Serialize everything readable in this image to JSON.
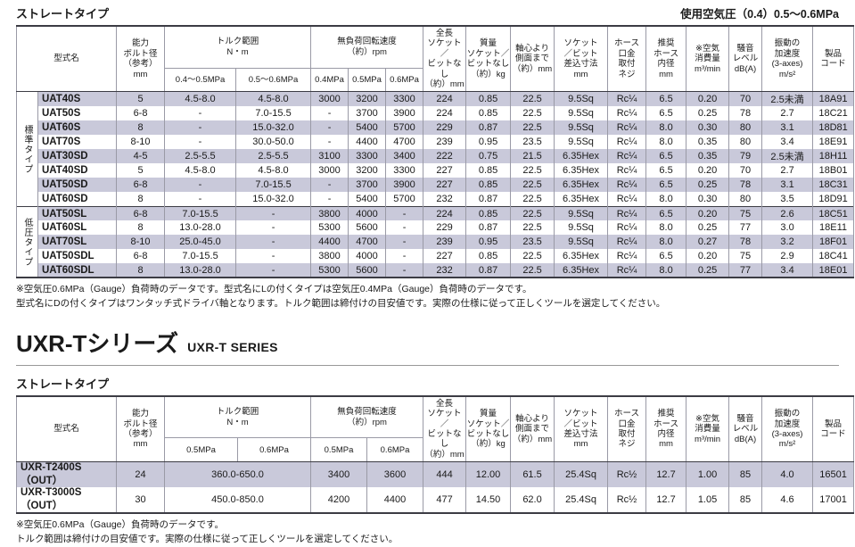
{
  "colors": {
    "stripe": "#c9c9da",
    "border_dark": "#3c3c44",
    "border_light": "#9a9aa6",
    "text": "#1a1a1a"
  },
  "page": {
    "table1_title": "ストレートタイプ",
    "air_pressure_note": "使用空気圧（0.4）0.5～0.6MPa",
    "series_title_jp": "UXR-Tシリーズ",
    "series_title_en": "UXR-T SERIES",
    "table2_title": "ストレートタイプ"
  },
  "table1": {
    "headers": {
      "model": "型式名",
      "bolt": "能力\nボルト径\n（参考）\nmm",
      "torque": "トルク範囲\nN・m",
      "torque_sub": [
        "0.4～0.5MPa",
        "0.5～0.6MPa"
      ],
      "rpm": "無負荷回転速度\n（約）rpm",
      "rpm_sub": [
        "0.4MPa",
        "0.5MPa",
        "0.6MPa"
      ],
      "length": "全長\nソケット／\nビットなし\n（約）mm",
      "mass": "質量\nソケット／\nビットなし\n（約）kg",
      "axis": "軸心より\n側面まで\n（約）mm",
      "socket": "ソケット\n／ビット\n差込寸法\nmm",
      "hose_screw": "ホース\n口金\n取付\nネジ",
      "hose_dia": "推奨\nホース\n内径\nmm",
      "air": "※空気\n消費量\nm³/min",
      "noise": "騒音\nレベル\ndB(A)",
      "vibration": "振動の\n加速度\n(3-axes)\nm/s²",
      "code": "製品\nコード"
    },
    "groups": [
      {
        "label": "標準タイプ",
        "rows": [
          {
            "model": "UAT40S",
            "cells": [
              "5",
              "4.5-8.0",
              "4.5-8.0",
              "3000",
              "3200",
              "3300",
              "224",
              "0.85",
              "22.5",
              "9.5Sq",
              "Rc¼",
              "6.5",
              "0.20",
              "70",
              "2.5未満",
              "18A91"
            ]
          },
          {
            "model": "UAT50S",
            "cells": [
              "6-8",
              "-",
              "7.0-15.5",
              "-",
              "3700",
              "3900",
              "224",
              "0.85",
              "22.5",
              "9.5Sq",
              "Rc¼",
              "6.5",
              "0.25",
              "78",
              "2.7",
              "18C21"
            ]
          },
          {
            "model": "UAT60S",
            "cells": [
              "8",
              "-",
              "15.0-32.0",
              "-",
              "5400",
              "5700",
              "229",
              "0.87",
              "22.5",
              "9.5Sq",
              "Rc¼",
              "8.0",
              "0.30",
              "80",
              "3.1",
              "18D81"
            ]
          },
          {
            "model": "UAT70S",
            "cells": [
              "8-10",
              "-",
              "30.0-50.0",
              "-",
              "4400",
              "4700",
              "239",
              "0.95",
              "23.5",
              "9.5Sq",
              "Rc¼",
              "8.0",
              "0.35",
              "80",
              "3.4",
              "18E91"
            ]
          },
          {
            "model": "UAT30SD",
            "cells": [
              "4-5",
              "2.5-5.5",
              "2.5-5.5",
              "3100",
              "3300",
              "3400",
              "222",
              "0.75",
              "21.5",
              "6.35Hex",
              "Rc¼",
              "6.5",
              "0.35",
              "79",
              "2.5未満",
              "18H11"
            ]
          },
          {
            "model": "UAT40SD",
            "cells": [
              "5",
              "4.5-8.0",
              "4.5-8.0",
              "3000",
              "3200",
              "3300",
              "227",
              "0.85",
              "22.5",
              "6.35Hex",
              "Rc¼",
              "6.5",
              "0.20",
              "70",
              "2.7",
              "18B01"
            ]
          },
          {
            "model": "UAT50SD",
            "cells": [
              "6-8",
              "-",
              "7.0-15.5",
              "-",
              "3700",
              "3900",
              "227",
              "0.85",
              "22.5",
              "6.35Hex",
              "Rc¼",
              "6.5",
              "0.25",
              "78",
              "3.1",
              "18C31"
            ]
          },
          {
            "model": "UAT60SD",
            "cells": [
              "8",
              "-",
              "15.0-32.0",
              "-",
              "5400",
              "5700",
              "232",
              "0.87",
              "22.5",
              "6.35Hex",
              "Rc¼",
              "8.0",
              "0.30",
              "80",
              "3.5",
              "18D91"
            ]
          }
        ]
      },
      {
        "label": "低圧タイプ",
        "rows": [
          {
            "model": "UAT50SL",
            "cells": [
              "6-8",
              "7.0-15.5",
              "-",
              "3800",
              "4000",
              "-",
              "224",
              "0.85",
              "22.5",
              "9.5Sq",
              "Rc¼",
              "6.5",
              "0.20",
              "75",
              "2.6",
              "18C51"
            ]
          },
          {
            "model": "UAT60SL",
            "cells": [
              "8",
              "13.0-28.0",
              "-",
              "5300",
              "5600",
              "-",
              "229",
              "0.87",
              "22.5",
              "9.5Sq",
              "Rc¼",
              "8.0",
              "0.25",
              "77",
              "3.0",
              "18E11"
            ]
          },
          {
            "model": "UAT70SL",
            "cells": [
              "8-10",
              "25.0-45.0",
              "-",
              "4400",
              "4700",
              "-",
              "239",
              "0.95",
              "23.5",
              "9.5Sq",
              "Rc¼",
              "8.0",
              "0.27",
              "78",
              "3.2",
              "18F01"
            ]
          },
          {
            "model": "UAT50SDL",
            "cells": [
              "6-8",
              "7.0-15.5",
              "-",
              "3800",
              "4000",
              "-",
              "227",
              "0.85",
              "22.5",
              "6.35Hex",
              "Rc¼",
              "6.5",
              "0.20",
              "75",
              "2.9",
              "18C41"
            ]
          },
          {
            "model": "UAT60SDL",
            "cells": [
              "8",
              "13.0-28.0",
              "-",
              "5300",
              "5600",
              "-",
              "232",
              "0.87",
              "22.5",
              "6.35Hex",
              "Rc¼",
              "8.0",
              "0.25",
              "77",
              "3.4",
              "18E01"
            ]
          }
        ]
      }
    ],
    "footnotes": [
      "※空気圧0.6MPa（Gauge）負荷時のデータです。型式名にLの付くタイプは空気圧0.4MPa（Gauge）負荷時のデータです。",
      "型式名にDの付くタイプはワンタッチ式ドライバ軸となります。トルク範囲は締付けの目安値です。実際の仕様に従って正しくツールを選定してください。"
    ]
  },
  "table2": {
    "headers": {
      "model": "型式名",
      "bolt": "能力\nボルト径\n（参考）\nmm",
      "torque": "トルク範囲\nN・m",
      "torque_sub": [
        "0.5MPa",
        "0.6MPa"
      ],
      "rpm": "無負荷回転速度\n（約）rpm",
      "rpm_sub": [
        "0.5MPa",
        "0.6MPa"
      ],
      "length": "全長\nソケット／\nビットなし\n（約）mm",
      "mass": "質量\nソケット／\nビットなし\n（約）kg",
      "axis": "軸心より\n側面まで\n（約）mm",
      "socket": "ソケット\n／ビット\n差込寸法\nmm",
      "hose_screw": "ホース\n口金\n取付\nネジ",
      "hose_dia": "推奨\nホース\n内径\nmm",
      "air": "※空気\n消費量\nm³/min",
      "noise": "騒音\nレベル\ndB(A)",
      "vibration": "振動の\n加速度\n(3-axes)\nm/s²",
      "code": "製品\nコード"
    },
    "groups": [
      {
        "label": null,
        "rows": [
          {
            "model": "UXR-T2400S（OUT）",
            "cells": [
              "24",
              "360.0-650.0",
              "3400",
              "3600",
              "444",
              "12.00",
              "61.5",
              "25.4Sq",
              "Rc½",
              "12.7",
              "1.00",
              "85",
              "4.0",
              "16501"
            ]
          },
          {
            "model": "UXR-T3000S（OUT）",
            "cells": [
              "30",
              "450.0-850.0",
              "4200",
              "4400",
              "477",
              "14.50",
              "62.0",
              "25.4Sq",
              "Rc½",
              "12.7",
              "1.05",
              "85",
              "4.6",
              "17001"
            ]
          }
        ]
      }
    ],
    "colspans": {
      "1": 2
    },
    "footnotes": [
      "※空気圧0.6MPa（Gauge）負荷時のデータです。",
      "トルク範囲は締付けの目安値です。実際の仕様に従って正しくツールを選定してください。"
    ]
  }
}
